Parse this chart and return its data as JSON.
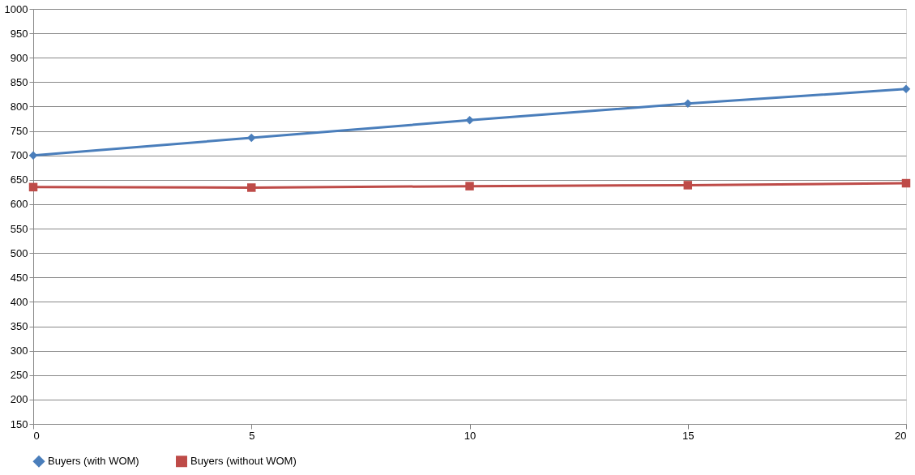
{
  "chart_data": {
    "type": "line",
    "x": [
      0,
      5,
      10,
      15,
      20
    ],
    "series": [
      {
        "name": "Buyers (with WOM)",
        "color": "#4a7ebb",
        "marker": "diamond",
        "values": [
          700,
          736,
          772,
          806,
          836
        ]
      },
      {
        "name": "Buyers (without WOM)",
        "color": "#be4b48",
        "marker": "square",
        "values": [
          635,
          634,
          637,
          639,
          643
        ]
      }
    ],
    "xlim": [
      0,
      20
    ],
    "xticks": [
      0,
      5,
      10,
      15,
      20
    ],
    "ylim": [
      150,
      1000
    ],
    "yticks": [
      150,
      200,
      250,
      300,
      350,
      400,
      450,
      500,
      550,
      600,
      650,
      700,
      750,
      800,
      850,
      900,
      950,
      1000
    ],
    "grid": "y",
    "legend": "bottom",
    "line_style": "solid"
  }
}
